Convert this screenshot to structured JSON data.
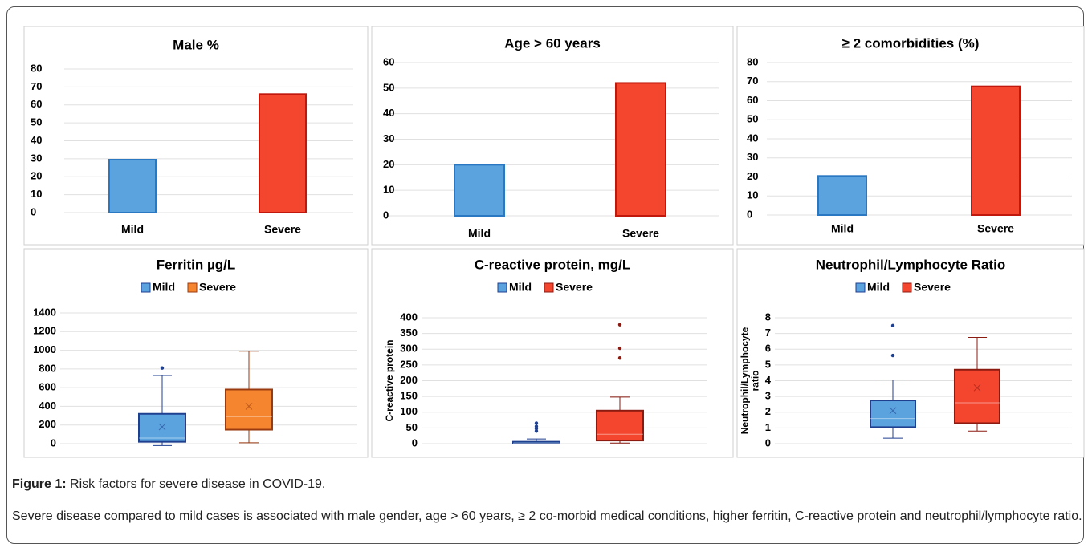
{
  "chart_data": [
    {
      "type": "bar",
      "title": "Male %",
      "categories": [
        "Mild",
        "Severe"
      ],
      "values": [
        29.5,
        66
      ],
      "colors": [
        "#5ba3df",
        "#f4452f"
      ],
      "edgecolors": [
        "#2a78c2",
        "#c0180c"
      ],
      "ylim": [
        0,
        80
      ],
      "yticks": [
        0,
        10,
        20,
        30,
        40,
        50,
        60,
        70,
        80
      ],
      "grid": true
    },
    {
      "type": "bar",
      "title": "Age > 60 years",
      "categories": [
        "Mild",
        "Severe"
      ],
      "values": [
        20,
        52
      ],
      "colors": [
        "#5ba3df",
        "#f4452f"
      ],
      "edgecolors": [
        "#2a78c2",
        "#c0180c"
      ],
      "ylim": [
        0,
        60
      ],
      "yticks": [
        0,
        10,
        20,
        30,
        40,
        50,
        60
      ],
      "grid": true
    },
    {
      "type": "bar",
      "title": "≥ 2 comorbidities (%)",
      "categories": [
        "Mild",
        "Severe"
      ],
      "values": [
        20.5,
        67.5
      ],
      "colors": [
        "#5ba3df",
        "#f4452f"
      ],
      "edgecolors": [
        "#2a78c2",
        "#c0180c"
      ],
      "ylim": [
        0,
        80
      ],
      "yticks": [
        0,
        10,
        20,
        30,
        40,
        50,
        60,
        70,
        80
      ],
      "grid": true
    },
    {
      "type": "box",
      "title": "Ferritin µg/L",
      "ylim": [
        0,
        1400
      ],
      "yticks": [
        0,
        200,
        400,
        600,
        800,
        1000,
        1200,
        1400
      ],
      "grid": true,
      "series": [
        {
          "name": "Mild",
          "color": "#5ba3df",
          "edgecolor": "#1f3f8f",
          "min": -20,
          "q1": 20,
          "median": 60,
          "q3": 320,
          "max": 730,
          "mean": 180,
          "outliers": [
            810
          ]
        },
        {
          "name": "Severe",
          "color": "#f5862f",
          "edgecolor": "#9a3a10",
          "min": 10,
          "q1": 150,
          "median": 290,
          "q3": 580,
          "max": 990,
          "mean": 400,
          "outliers": []
        }
      ]
    },
    {
      "type": "box",
      "title": "C-reactive protein, mg/L",
      "ylabel": [
        "C-reactive protein"
      ],
      "ylim": [
        0,
        400
      ],
      "yticks": [
        0,
        50,
        100,
        150,
        200,
        250,
        300,
        350,
        400
      ],
      "grid": true,
      "series": [
        {
          "name": "Mild",
          "color": "#5ba3df",
          "edgecolor": "#1f3f8f",
          "min": 0,
          "q1": 0,
          "median": 2,
          "q3": 6,
          "max": 15,
          "outliers": [
            40,
            48,
            55,
            65
          ]
        },
        {
          "name": "Severe",
          "color": "#f4452f",
          "edgecolor": "#8b1a10",
          "min": 2,
          "q1": 10,
          "median": 30,
          "q3": 105,
          "max": 148,
          "outliers": [
            272,
            303,
            378
          ]
        }
      ]
    },
    {
      "type": "box",
      "title": "Neutrophil/Lymphocyte Ratio",
      "ylabel": [
        "Neutrophil/Lymphocyte",
        "ratio"
      ],
      "ylim": [
        0,
        8
      ],
      "yticks": [
        0,
        1,
        2,
        3,
        4,
        5,
        6,
        7,
        8
      ],
      "grid": true,
      "series": [
        {
          "name": "Mild",
          "color": "#5ba3df",
          "edgecolor": "#1f3f8f",
          "min": 0.35,
          "q1": 1.05,
          "median": 1.6,
          "q3": 2.75,
          "max": 4.05,
          "mean": 2.1,
          "outliers": [
            5.6,
            7.5
          ]
        },
        {
          "name": "Severe",
          "color": "#f4452f",
          "edgecolor": "#8b1a10",
          "min": 0.8,
          "q1": 1.3,
          "median": 2.6,
          "q3": 4.7,
          "max": 6.75,
          "mean": 3.55,
          "outliers": []
        }
      ]
    }
  ],
  "caption": {
    "label": "Figure 1:",
    "title": "Risk factors for severe disease in COVID-19.",
    "text": "Severe disease compared to mild cases is associated with male gender, age > 60 years,  ≥ 2 co-morbid medical conditions, higher ferritin, C-reactive protein and neutrophil/lymphocyte ratio."
  }
}
